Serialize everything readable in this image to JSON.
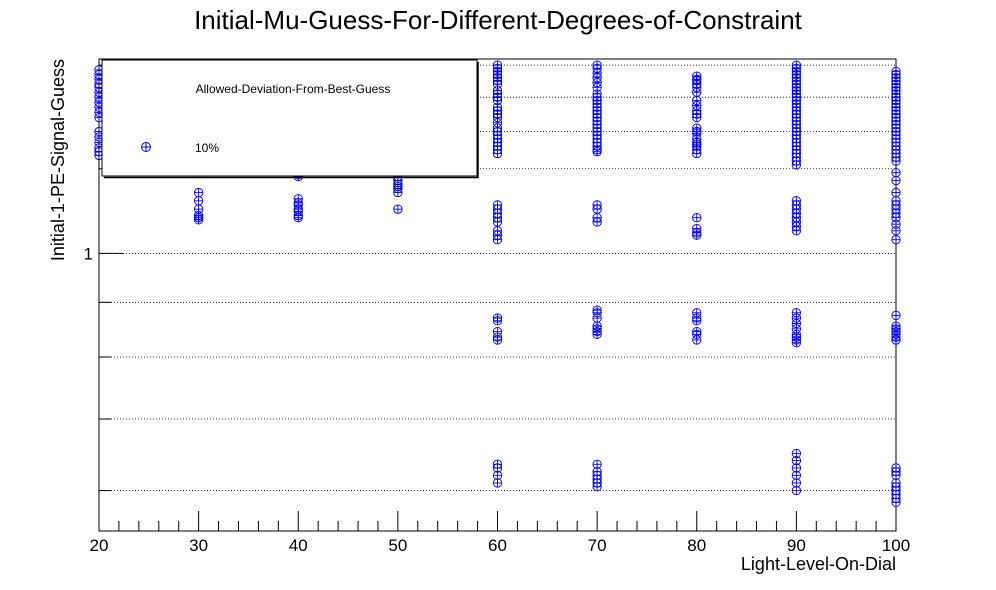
{
  "chart_data": {
    "type": "scatter",
    "title": "Initial-Mu-Guess-For-Different-Degrees-of-Constraint",
    "xlabel": "Light-Level-On-Dial",
    "ylabel": "Initial-1-PE-Signal-Guess",
    "xlim": [
      20,
      100
    ],
    "ylim": [
      0.55,
      1.52
    ],
    "y_scale": "log",
    "x_ticks": [
      20,
      30,
      40,
      50,
      60,
      70,
      80,
      90,
      100
    ],
    "y_tick_labels": [
      {
        "value": 1,
        "label": "1"
      }
    ],
    "grid": "horizontal dotted",
    "legend": {
      "header": "Allowed-Deviation-From-Best-Guess",
      "entries": [
        {
          "label": "10%",
          "marker": "circle-plus"
        }
      ],
      "placement": "top-left"
    },
    "series": [
      {
        "name": "10%",
        "color": "#0000ff",
        "points": [
          [
            20,
            1.485
          ],
          [
            20,
            1.47
          ],
          [
            20,
            1.455
          ],
          [
            20,
            1.44
          ],
          [
            20,
            1.43
          ],
          [
            20,
            1.415
          ],
          [
            20,
            1.4
          ],
          [
            20,
            1.385
          ],
          [
            20,
            1.37
          ],
          [
            20,
            1.355
          ],
          [
            20,
            1.34
          ],
          [
            20,
            1.3
          ],
          [
            20,
            1.285
          ],
          [
            20,
            1.27
          ],
          [
            20,
            1.255
          ],
          [
            20,
            1.245
          ],
          [
            20,
            1.235
          ],
          [
            30,
            1.5
          ],
          [
            30,
            1.24
          ],
          [
            30,
            1.23
          ],
          [
            30,
            1.14
          ],
          [
            30,
            1.12
          ],
          [
            30,
            1.1
          ],
          [
            30,
            1.085
          ],
          [
            30,
            1.08
          ],
          [
            30,
            1.075
          ],
          [
            40,
            1.5
          ],
          [
            40,
            1.24
          ],
          [
            40,
            1.185
          ],
          [
            40,
            1.18
          ],
          [
            40,
            1.125
          ],
          [
            40,
            1.115
          ],
          [
            40,
            1.11
          ],
          [
            40,
            1.1
          ],
          [
            40,
            1.095
          ],
          [
            40,
            1.085
          ],
          [
            40,
            1.08
          ],
          [
            50,
            1.5
          ],
          [
            50,
            1.27
          ],
          [
            50,
            1.255
          ],
          [
            50,
            1.245
          ],
          [
            50,
            1.24
          ],
          [
            50,
            1.235
          ],
          [
            50,
            1.2
          ],
          [
            50,
            1.19
          ],
          [
            50,
            1.18
          ],
          [
            50,
            1.17
          ],
          [
            50,
            1.16
          ],
          [
            50,
            1.155
          ],
          [
            50,
            1.15
          ],
          [
            50,
            1.14
          ],
          [
            50,
            1.1
          ],
          [
            60,
            1.5
          ],
          [
            60,
            1.49
          ],
          [
            60,
            1.48
          ],
          [
            60,
            1.47
          ],
          [
            60,
            1.46
          ],
          [
            60,
            1.45
          ],
          [
            60,
            1.44
          ],
          [
            60,
            1.42
          ],
          [
            60,
            1.41
          ],
          [
            60,
            1.4
          ],
          [
            60,
            1.39
          ],
          [
            60,
            1.37
          ],
          [
            60,
            1.36
          ],
          [
            60,
            1.35
          ],
          [
            60,
            1.34
          ],
          [
            60,
            1.325
          ],
          [
            60,
            1.31
          ],
          [
            60,
            1.3
          ],
          [
            60,
            1.29
          ],
          [
            60,
            1.28
          ],
          [
            60,
            1.27
          ],
          [
            60,
            1.26
          ],
          [
            60,
            1.25
          ],
          [
            60,
            1.24
          ],
          [
            60,
            1.11
          ],
          [
            60,
            1.1
          ],
          [
            60,
            1.09
          ],
          [
            60,
            1.08
          ],
          [
            60,
            1.07
          ],
          [
            60,
            1.05
          ],
          [
            60,
            1.04
          ],
          [
            60,
            1.03
          ],
          [
            60,
            0.87
          ],
          [
            60,
            0.865
          ],
          [
            60,
            0.845
          ],
          [
            60,
            0.835
          ],
          [
            60,
            0.83
          ],
          [
            60,
            0.635
          ],
          [
            60,
            0.63
          ],
          [
            60,
            0.62
          ],
          [
            60,
            0.61
          ],
          [
            70,
            1.5
          ],
          [
            70,
            1.49
          ],
          [
            70,
            1.475
          ],
          [
            70,
            1.46
          ],
          [
            70,
            1.445
          ],
          [
            70,
            1.43
          ],
          [
            70,
            1.41
          ],
          [
            70,
            1.4
          ],
          [
            70,
            1.39
          ],
          [
            70,
            1.38
          ],
          [
            70,
            1.37
          ],
          [
            70,
            1.36
          ],
          [
            70,
            1.35
          ],
          [
            70,
            1.34
          ],
          [
            70,
            1.33
          ],
          [
            70,
            1.32
          ],
          [
            70,
            1.31
          ],
          [
            70,
            1.3
          ],
          [
            70,
            1.29
          ],
          [
            70,
            1.28
          ],
          [
            70,
            1.27
          ],
          [
            70,
            1.26
          ],
          [
            70,
            1.25
          ],
          [
            70,
            1.245
          ],
          [
            70,
            1.11
          ],
          [
            70,
            1.1
          ],
          [
            70,
            1.08
          ],
          [
            70,
            1.07
          ],
          [
            70,
            0.885
          ],
          [
            70,
            0.88
          ],
          [
            70,
            0.87
          ],
          [
            70,
            0.855
          ],
          [
            70,
            0.85
          ],
          [
            70,
            0.845
          ],
          [
            70,
            0.84
          ],
          [
            70,
            0.635
          ],
          [
            70,
            0.625
          ],
          [
            70,
            0.62
          ],
          [
            70,
            0.615
          ],
          [
            70,
            0.61
          ],
          [
            70,
            0.605
          ],
          [
            80,
            1.465
          ],
          [
            80,
            1.455
          ],
          [
            80,
            1.45
          ],
          [
            80,
            1.44
          ],
          [
            80,
            1.43
          ],
          [
            80,
            1.415
          ],
          [
            80,
            1.39
          ],
          [
            80,
            1.375
          ],
          [
            80,
            1.36
          ],
          [
            80,
            1.35
          ],
          [
            80,
            1.34
          ],
          [
            80,
            1.31
          ],
          [
            80,
            1.3
          ],
          [
            80,
            1.295
          ],
          [
            80,
            1.28
          ],
          [
            80,
            1.27
          ],
          [
            80,
            1.265
          ],
          [
            80,
            1.26
          ],
          [
            80,
            1.25
          ],
          [
            80,
            1.24
          ],
          [
            80,
            1.08
          ],
          [
            80,
            1.055
          ],
          [
            80,
            1.045
          ],
          [
            80,
            1.04
          ],
          [
            80,
            0.88
          ],
          [
            80,
            0.87
          ],
          [
            80,
            0.865
          ],
          [
            80,
            0.845
          ],
          [
            80,
            0.84
          ],
          [
            80,
            0.83
          ],
          [
            90,
            1.5
          ],
          [
            90,
            1.49
          ],
          [
            90,
            1.48
          ],
          [
            90,
            1.47
          ],
          [
            90,
            1.46
          ],
          [
            90,
            1.45
          ],
          [
            90,
            1.44
          ],
          [
            90,
            1.43
          ],
          [
            90,
            1.42
          ],
          [
            90,
            1.41
          ],
          [
            90,
            1.4
          ],
          [
            90,
            1.39
          ],
          [
            90,
            1.38
          ],
          [
            90,
            1.37
          ],
          [
            90,
            1.36
          ],
          [
            90,
            1.35
          ],
          [
            90,
            1.34
          ],
          [
            90,
            1.33
          ],
          [
            90,
            1.32
          ],
          [
            90,
            1.31
          ],
          [
            90,
            1.3
          ],
          [
            90,
            1.29
          ],
          [
            90,
            1.28
          ],
          [
            90,
            1.27
          ],
          [
            90,
            1.26
          ],
          [
            90,
            1.25
          ],
          [
            90,
            1.24
          ],
          [
            90,
            1.23
          ],
          [
            90,
            1.22
          ],
          [
            90,
            1.21
          ],
          [
            90,
            1.12
          ],
          [
            90,
            1.11
          ],
          [
            90,
            1.1
          ],
          [
            90,
            1.09
          ],
          [
            90,
            1.08
          ],
          [
            90,
            1.07
          ],
          [
            90,
            1.06
          ],
          [
            90,
            1.05
          ],
          [
            90,
            0.88
          ],
          [
            90,
            0.87
          ],
          [
            90,
            0.86
          ],
          [
            90,
            0.85
          ],
          [
            90,
            0.84
          ],
          [
            90,
            0.835
          ],
          [
            90,
            0.83
          ],
          [
            90,
            0.825
          ],
          [
            90,
            0.65
          ],
          [
            90,
            0.64
          ],
          [
            90,
            0.63
          ],
          [
            90,
            0.62
          ],
          [
            90,
            0.61
          ],
          [
            90,
            0.6
          ],
          [
            100,
            1.48
          ],
          [
            100,
            1.47
          ],
          [
            100,
            1.46
          ],
          [
            100,
            1.45
          ],
          [
            100,
            1.44
          ],
          [
            100,
            1.43
          ],
          [
            100,
            1.42
          ],
          [
            100,
            1.41
          ],
          [
            100,
            1.4
          ],
          [
            100,
            1.39
          ],
          [
            100,
            1.38
          ],
          [
            100,
            1.37
          ],
          [
            100,
            1.36
          ],
          [
            100,
            1.35
          ],
          [
            100,
            1.34
          ],
          [
            100,
            1.33
          ],
          [
            100,
            1.32
          ],
          [
            100,
            1.31
          ],
          [
            100,
            1.3
          ],
          [
            100,
            1.29
          ],
          [
            100,
            1.28
          ],
          [
            100,
            1.27
          ],
          [
            100,
            1.26
          ],
          [
            100,
            1.25
          ],
          [
            100,
            1.24
          ],
          [
            100,
            1.23
          ],
          [
            100,
            1.22
          ],
          [
            100,
            1.19
          ],
          [
            100,
            1.17
          ],
          [
            100,
            1.14
          ],
          [
            100,
            1.12
          ],
          [
            100,
            1.11
          ],
          [
            100,
            1.1
          ],
          [
            100,
            1.09
          ],
          [
            100,
            1.08
          ],
          [
            100,
            1.065
          ],
          [
            100,
            1.05
          ],
          [
            100,
            1.03
          ],
          [
            100,
            0.875
          ],
          [
            100,
            0.855
          ],
          [
            100,
            0.85
          ],
          [
            100,
            0.845
          ],
          [
            100,
            0.84
          ],
          [
            100,
            0.835
          ],
          [
            100,
            0.83
          ],
          [
            100,
            0.83
          ],
          [
            100,
            0.63
          ],
          [
            100,
            0.625
          ],
          [
            100,
            0.62
          ],
          [
            100,
            0.61
          ],
          [
            100,
            0.605
          ],
          [
            100,
            0.6
          ],
          [
            100,
            0.595
          ],
          [
            100,
            0.59
          ],
          [
            100,
            0.585
          ]
        ]
      }
    ]
  }
}
